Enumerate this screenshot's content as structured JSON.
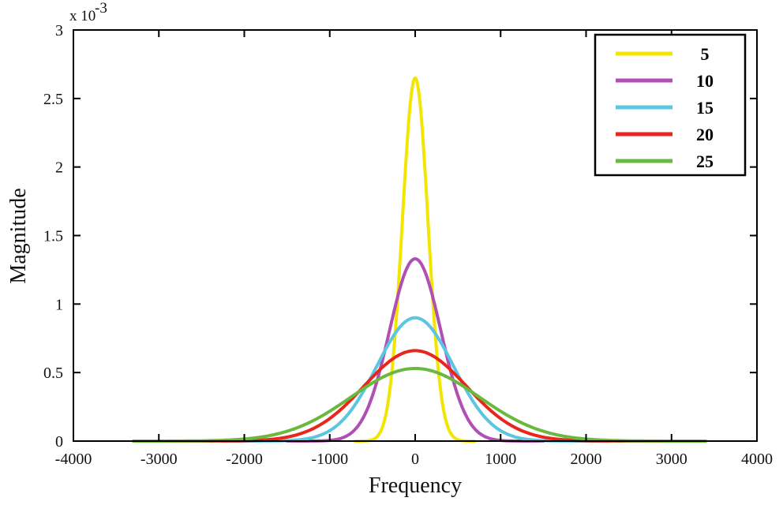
{
  "chart_data": {
    "type": "line",
    "title": "",
    "xlabel": "Frequency",
    "ylabel": "Magnitude",
    "xlim": [
      -4000,
      4000
    ],
    "ylim": [
      0,
      0.003
    ],
    "y_scale_label": "x 10",
    "y_scale_exponent": "-3",
    "x_ticks": [
      -4000,
      -3000,
      -2000,
      -1000,
      0,
      1000,
      2000,
      3000,
      4000
    ],
    "x_tick_labels": [
      "-4000",
      "-3000",
      "-2000",
      "-1000",
      "0",
      "1000",
      "2000",
      "3000",
      "4000"
    ],
    "y_ticks": [
      0,
      0.0005,
      0.001,
      0.0015,
      0.002,
      0.0025,
      0.003
    ],
    "y_tick_labels": [
      "0",
      "0.5",
      "1",
      "1.5",
      "2",
      "2.5",
      "3"
    ],
    "grid": false,
    "legend_position": "top-right",
    "series": [
      {
        "name": "5",
        "color": "#f2e600",
        "peak": 0.00265,
        "sigma": 150,
        "support": [
          -700,
          700
        ]
      },
      {
        "name": "10",
        "color": "#b050b4",
        "peak": 0.00133,
        "sigma": 300,
        "support": [
          -1500,
          1500
        ]
      },
      {
        "name": "15",
        "color": "#5cc6e0",
        "peak": 0.0009,
        "sigma": 450,
        "support": [
          -2200,
          2200
        ]
      },
      {
        "name": "20",
        "color": "#e8261c",
        "peak": 0.00066,
        "sigma": 600,
        "support": [
          -3000,
          3000
        ]
      },
      {
        "name": "25",
        "color": "#6ab83e",
        "peak": 0.00053,
        "sigma": 750,
        "support": [
          -3300,
          3400
        ]
      }
    ]
  }
}
